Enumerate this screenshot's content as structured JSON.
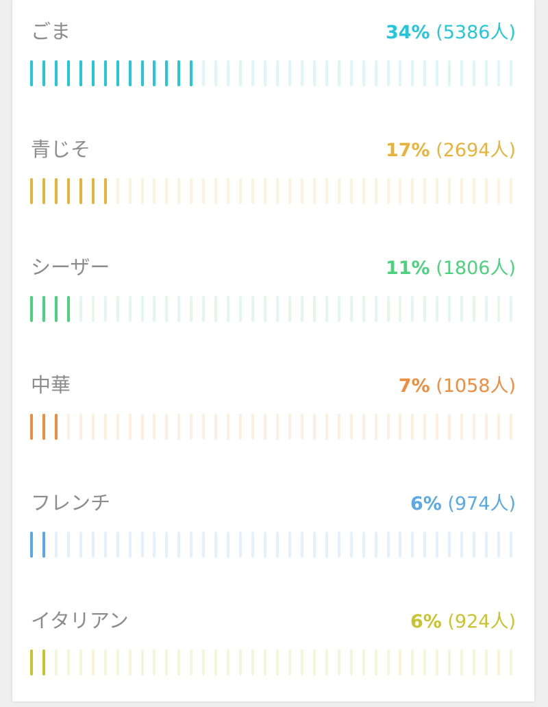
{
  "items": [
    {
      "label": "ごま",
      "percent": "34%",
      "count": "(5386人)",
      "fraction": 0.34,
      "color": "#26c6da",
      "color_light": "#dff6f9"
    },
    {
      "label": "青じそ",
      "percent": "17%",
      "count": "(2694人)",
      "fraction": 0.17,
      "color": "#e6b43c",
      "color_light": "#fcf3df"
    },
    {
      "label": "シーザー",
      "percent": "11%",
      "count": "(1806人)",
      "fraction": 0.11,
      "color": "#4cd17e",
      "color_light": "#e3f8eb"
    },
    {
      "label": "中華",
      "percent": "7%",
      "count": "(1058人)",
      "fraction": 0.07,
      "color": "#ee8c40",
      "color_light": "#fdeedf"
    },
    {
      "label": "フレンチ",
      "percent": "6%",
      "count": "(974人)",
      "fraction": 0.06,
      "color": "#5aa8e6",
      "color_light": "#e4f1fc"
    },
    {
      "label": "イタリアン",
      "percent": "6%",
      "count": "(924人)",
      "fraction": 0.06,
      "color": "#c8c430",
      "color_light": "#f6f5dc"
    }
  ]
}
